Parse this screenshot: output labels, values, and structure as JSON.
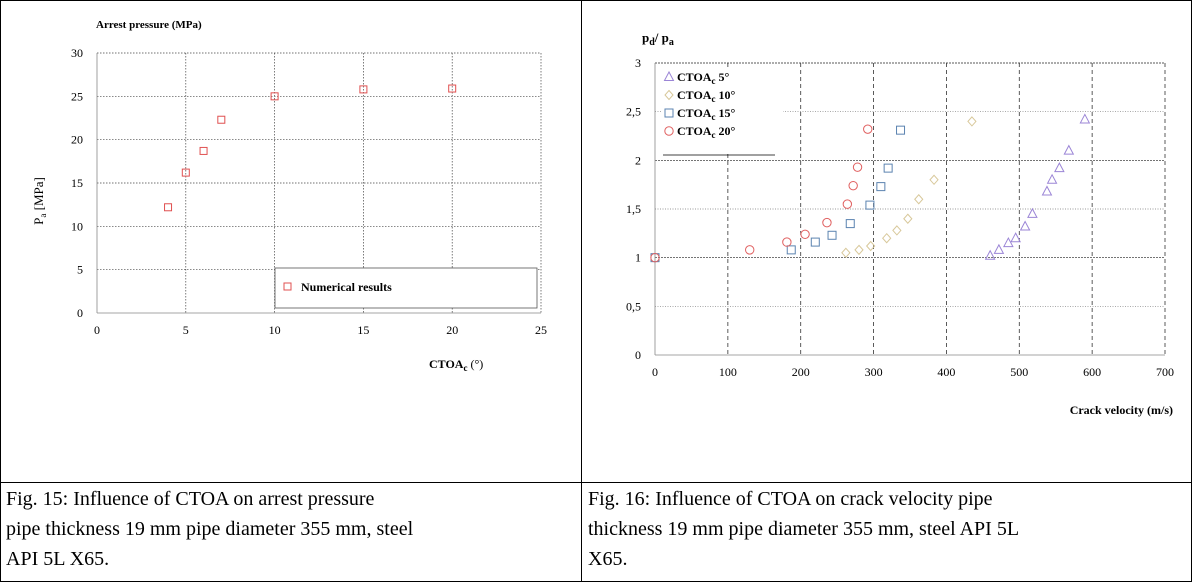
{
  "figures": {
    "left": {
      "caption_lines": [
        "Fig. 15: Influence of CTOA on arrest pressure",
        "pipe thickness 19 mm pipe diameter 355 mm, steel",
        "API 5L X65."
      ]
    },
    "right": {
      "caption_lines": [
        "Fig. 16: Influence of CTOA on crack velocity pipe",
        "thickness 19 mm pipe diameter 355 mm, steel API 5L",
        "X65."
      ]
    }
  },
  "chart_data": [
    {
      "type": "scatter",
      "title": "Arrest pressure (MPa)",
      "ylabel_main": "P",
      "ylabel_sub": "a",
      "ylabel_rest": " [MPa]",
      "xlabel_main": "CTOA",
      "xlabel_sub": "c",
      "xlabel_rest": " (°)",
      "xlim": [
        0,
        25
      ],
      "ylim": [
        0,
        30
      ],
      "xticks": [
        0,
        5,
        10,
        15,
        20,
        25
      ],
      "yticks": [
        0,
        5,
        10,
        15,
        20,
        25,
        30
      ],
      "grid": "vertical and horizontal dotted",
      "legend_position": "bottom-right",
      "marker_color": "#e05050",
      "series": [
        {
          "name": "Numerical results",
          "points": [
            [
              4,
              12.2
            ],
            [
              5,
              16.2
            ],
            [
              6,
              18.7
            ],
            [
              7,
              22.3
            ],
            [
              10,
              25.0
            ],
            [
              15,
              25.8
            ],
            [
              20,
              25.9
            ]
          ]
        }
      ]
    },
    {
      "type": "scatter",
      "title_main": "p",
      "title_sub1": "d",
      "title_mid": "/ p",
      "title_sub2": "a",
      "xlabel": "Crack velocity (m/s)",
      "xlim": [
        0,
        700
      ],
      "ylim": [
        0,
        3
      ],
      "xticks": [
        0,
        100,
        200,
        300,
        400,
        500,
        600,
        700
      ],
      "yticks": [
        "0",
        "0,5",
        "1",
        "1,5",
        "2",
        "2,5",
        "3"
      ],
      "ytick_values": [
        0,
        0.5,
        1,
        1.5,
        2,
        2.5,
        3
      ],
      "grid": "dotted with dashed vertical lines",
      "legend_position": "top-left",
      "series": [
        {
          "name_main": "CTOA",
          "name_sub": "c",
          "name_rest": "  5°",
          "marker": "triangle",
          "color": "#9b85d6",
          "points": [
            [
              460,
              1.02
            ],
            [
              472,
              1.08
            ],
            [
              485,
              1.15
            ],
            [
              495,
              1.2
            ],
            [
              508,
              1.32
            ],
            [
              518,
              1.45
            ],
            [
              538,
              1.68
            ],
            [
              545,
              1.8
            ],
            [
              555,
              1.92
            ],
            [
              568,
              2.1
            ],
            [
              590,
              2.42
            ]
          ]
        },
        {
          "name_main": "CTOA",
          "name_sub": "c",
          "name_rest": " 10°",
          "marker": "diamond",
          "color": "#d8c89a",
          "points": [
            [
              262,
              1.05
            ],
            [
              280,
              1.08
            ],
            [
              296,
              1.12
            ],
            [
              318,
              1.2
            ],
            [
              332,
              1.28
            ],
            [
              347,
              1.4
            ],
            [
              362,
              1.6
            ],
            [
              383,
              1.8
            ],
            [
              435,
              2.4
            ]
          ]
        },
        {
          "name_main": "CTOA",
          "name_sub": "c",
          "name_rest": " 15°",
          "marker": "square",
          "color": "#5b83b0",
          "points": [
            [
              0,
              1.0
            ],
            [
              187,
              1.08
            ],
            [
              220,
              1.16
            ],
            [
              243,
              1.23
            ],
            [
              268,
              1.35
            ],
            [
              295,
              1.54
            ],
            [
              310,
              1.73
            ],
            [
              320,
              1.92
            ],
            [
              337,
              2.31
            ]
          ]
        },
        {
          "name_main": "CTOA",
          "name_sub": "c",
          "name_rest": " 20°",
          "marker": "circle",
          "color": "#e06060",
          "points": [
            [
              0,
              1.0
            ],
            [
              130,
              1.08
            ],
            [
              181,
              1.16
            ],
            [
              206,
              1.24
            ],
            [
              236,
              1.36
            ],
            [
              264,
              1.55
            ],
            [
              272,
              1.74
            ],
            [
              278,
              1.93
            ],
            [
              292,
              2.32
            ]
          ]
        }
      ]
    }
  ]
}
